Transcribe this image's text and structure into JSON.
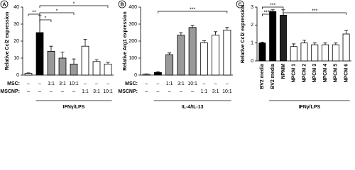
{
  "chart_data": [
    {
      "type": "bar",
      "panel": "A",
      "ylabel": "Relative Ccl2 expression",
      "values": [
        1,
        25,
        14,
        10,
        6.5,
        17,
        8,
        6.5
      ],
      "errors": [
        0.3,
        10,
        3,
        3.5,
        3,
        4,
        1,
        1
      ],
      "colors": [
        "#ffffff",
        "#000000",
        "#999999",
        "#999999",
        "#999999",
        "#ffffff",
        "#ffffff",
        "#ffffff"
      ],
      "ylim": [
        0,
        40
      ],
      "yticks": [
        0,
        10,
        20,
        30,
        40
      ],
      "conditions": [
        {
          "label": "MSC:",
          "values": [
            "–",
            "–",
            "1:1",
            "3:1",
            "10:1",
            "–",
            "–",
            "–"
          ]
        },
        {
          "label": "MSCNP:",
          "values": [
            "–",
            "–",
            "–",
            "–",
            "–",
            "1:1",
            "3:1",
            "10:1"
          ]
        }
      ],
      "treatment": "IFNγ/LPS",
      "annotations": [
        "**",
        "*",
        "*",
        "*"
      ]
    },
    {
      "type": "bar",
      "panel": "B",
      "ylabel": "Relative Arg1 expression",
      "values": [
        5,
        15,
        120,
        235,
        280,
        190,
        235,
        265
      ],
      "errors": [
        2,
        5,
        10,
        15,
        12,
        12,
        20,
        15
      ],
      "colors": [
        "#ffffff",
        "#000000",
        "#999999",
        "#999999",
        "#999999",
        "#ffffff",
        "#ffffff",
        "#ffffff"
      ],
      "ylim": [
        0,
        400
      ],
      "yticks": [
        0,
        100,
        200,
        300,
        400
      ],
      "conditions": [
        {
          "label": "MSC:",
          "values": [
            "–",
            "–",
            "1:1",
            "3:1",
            "10:1",
            "–",
            "–",
            "–"
          ]
        },
        {
          "label": "MSCNP:",
          "values": [
            "–",
            "–",
            "–",
            "–",
            "–",
            "1:1",
            "3:1",
            "10:1"
          ]
        }
      ],
      "treatment": "IL-4/IL-13",
      "annotations": [
        "***"
      ]
    },
    {
      "type": "bar",
      "panel": "C",
      "ylabel": "Relative Ccl2 expression",
      "categories": [
        "BV2 media",
        "BV2 media",
        "NPMM",
        "NPCM 1",
        "NPCM 2",
        "NPCM 3",
        "NPCM 4",
        "NPCM 5",
        "NPCM 6"
      ],
      "values": [
        1.0,
        2.75,
        2.55,
        0.8,
        1.0,
        0.9,
        0.9,
        0.9,
        1.5
      ],
      "errors": [
        0.05,
        0.1,
        0.3,
        0.15,
        0.15,
        0.1,
        0.1,
        0.1,
        0.2
      ],
      "colors": [
        "#000000",
        "#000000",
        "#222222",
        "#ffffff",
        "#ffffff",
        "#ffffff",
        "#ffffff",
        "#ffffff",
        "#ffffff"
      ],
      "ylim": [
        0,
        3
      ],
      "yticks": [
        0,
        1,
        2,
        3
      ],
      "treatment": "IFNγ/LPS",
      "annotations": [
        "****",
        "***",
        "***"
      ]
    }
  ]
}
